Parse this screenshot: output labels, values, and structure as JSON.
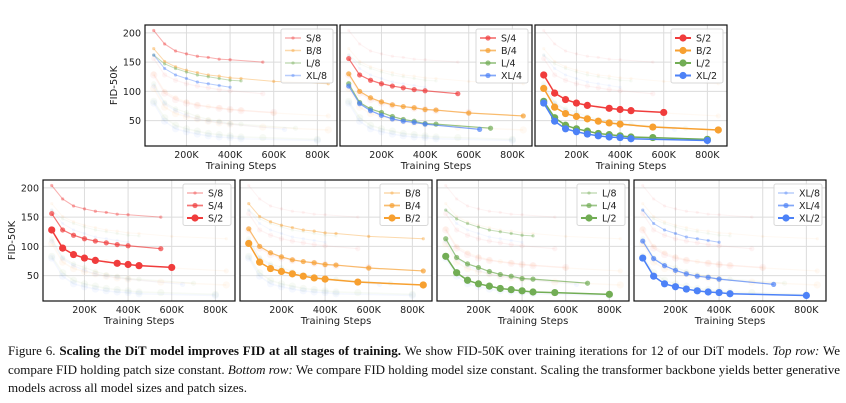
{
  "chart_data": {
    "type": "line",
    "xlabel": "Training Steps",
    "ylabel": "FID-50K",
    "xlim": [
      10000,
      890000
    ],
    "ylim": [
      6.6,
      213.4
    ],
    "x_ticks": [
      200000,
      400000,
      600000,
      800000
    ],
    "x_tick_labels": [
      "200K",
      "400K",
      "600K",
      "800K"
    ],
    "y_ticks": [
      50,
      100,
      150,
      200
    ],
    "y_tick_labels": [
      "50",
      "100",
      "150",
      "200"
    ],
    "grid": true,
    "legend_placement": "top-right",
    "colors": {
      "S": "#f03c3c",
      "B": "#f7a030",
      "L": "#72ad55",
      "XL": "#4d82f7"
    },
    "series": {
      "S/8": {
        "x": [
          50000,
          100000,
          150000,
          200000,
          250000,
          300000,
          350000,
          400000,
          550000
        ],
        "y": [
          204,
          181,
          169,
          164,
          160,
          158,
          155,
          154,
          150
        ]
      },
      "B/8": {
        "x": [
          50000,
          100000,
          150000,
          200000,
          250000,
          300000,
          350000,
          400000,
          450000,
          600000,
          850000
        ],
        "y": [
          173,
          151,
          142,
          136,
          132,
          128,
          126,
          123,
          122,
          117,
          113
        ]
      },
      "L/8": {
        "x": [
          50000,
          100000,
          150000,
          200000,
          250000,
          300000,
          350000,
          400000,
          450000
        ],
        "y": [
          162,
          147,
          139,
          133,
          128,
          125,
          122,
          119,
          118
        ]
      },
      "XL/8": {
        "x": [
          50000,
          100000,
          150000,
          200000,
          250000,
          300000,
          350000,
          400000
        ],
        "y": [
          162,
          139,
          128,
          122,
          116,
          113,
          110,
          107
        ]
      },
      "S/4": {
        "x": [
          50000,
          100000,
          150000,
          200000,
          250000,
          300000,
          350000,
          400000,
          550000
        ],
        "y": [
          156,
          128,
          119,
          113,
          109,
          106,
          103,
          101,
          96
        ]
      },
      "B/4": {
        "x": [
          50000,
          100000,
          150000,
          200000,
          250000,
          300000,
          350000,
          400000,
          450000,
          600000,
          850000
        ],
        "y": [
          130,
          100,
          89,
          82,
          77,
          74,
          72,
          69,
          68,
          63,
          58
        ]
      },
      "L/4": {
        "x": [
          50000,
          100000,
          150000,
          200000,
          250000,
          300000,
          350000,
          400000,
          450000,
          700000
        ],
        "y": [
          113,
          81,
          70,
          64,
          57,
          52,
          49,
          45,
          44,
          37
        ]
      },
      "XL/4": {
        "x": [
          50000,
          100000,
          150000,
          200000,
          250000,
          300000,
          350000,
          400000,
          650000
        ],
        "y": [
          109,
          79,
          67,
          59,
          53,
          49,
          47,
          44,
          35
        ]
      },
      "S/2": {
        "x": [
          50000,
          100000,
          150000,
          200000,
          250000,
          350000,
          400000,
          450000,
          600000
        ],
        "y": [
          128,
          97,
          86,
          80,
          76,
          71,
          69,
          67,
          64
        ]
      },
      "B/2": {
        "x": [
          50000,
          100000,
          150000,
          200000,
          250000,
          300000,
          350000,
          400000,
          550000,
          850000
        ],
        "y": [
          105,
          73,
          62,
          57,
          53,
          49,
          46,
          44,
          39,
          34
        ]
      },
      "L/2": {
        "x": [
          50000,
          100000,
          150000,
          200000,
          250000,
          300000,
          350000,
          400000,
          450000,
          550000,
          800000
        ],
        "y": [
          83,
          55,
          42,
          36,
          32,
          28,
          26,
          24,
          22,
          21,
          18
        ]
      },
      "XL/2": {
        "x": [
          50000,
          100000,
          150000,
          200000,
          250000,
          300000,
          350000,
          400000,
          450000,
          800000
        ],
        "y": [
          80,
          49,
          36,
          31,
          27,
          24,
          22,
          21,
          19,
          16
        ]
      }
    },
    "panels": [
      {
        "row": "top",
        "legend": [
          "S/8",
          "B/8",
          "L/8",
          "XL/8"
        ],
        "show_ylabel": true
      },
      {
        "row": "top",
        "legend": [
          "S/4",
          "B/4",
          "L/4",
          "XL/4"
        ],
        "show_ylabel": false
      },
      {
        "row": "top",
        "legend": [
          "S/2",
          "B/2",
          "L/2",
          "XL/2"
        ],
        "show_ylabel": false
      },
      {
        "row": "bottom",
        "legend": [
          "S/8",
          "S/4",
          "S/2"
        ],
        "show_ylabel": true
      },
      {
        "row": "bottom",
        "legend": [
          "B/8",
          "B/4",
          "B/2"
        ],
        "show_ylabel": false
      },
      {
        "row": "bottom",
        "legend": [
          "L/8",
          "L/4",
          "L/2"
        ],
        "show_ylabel": false
      },
      {
        "row": "bottom",
        "legend": [
          "XL/8",
          "XL/4",
          "XL/2"
        ],
        "show_ylabel": false
      }
    ]
  },
  "caption": {
    "label": "Figure 6.",
    "bold": "Scaling the DiT model improves FID at all stages of training.",
    "text1": " We show FID-50K over training iterations for 12 of our DiT models. ",
    "top_row_label": "Top row:",
    "text2": " We compare FID holding patch size constant. ",
    "bottom_row_label": "Bottom row:",
    "text3": " We compare FID holding model size constant. Scaling the transformer backbone yields better generative models across all model sizes and patch sizes."
  }
}
